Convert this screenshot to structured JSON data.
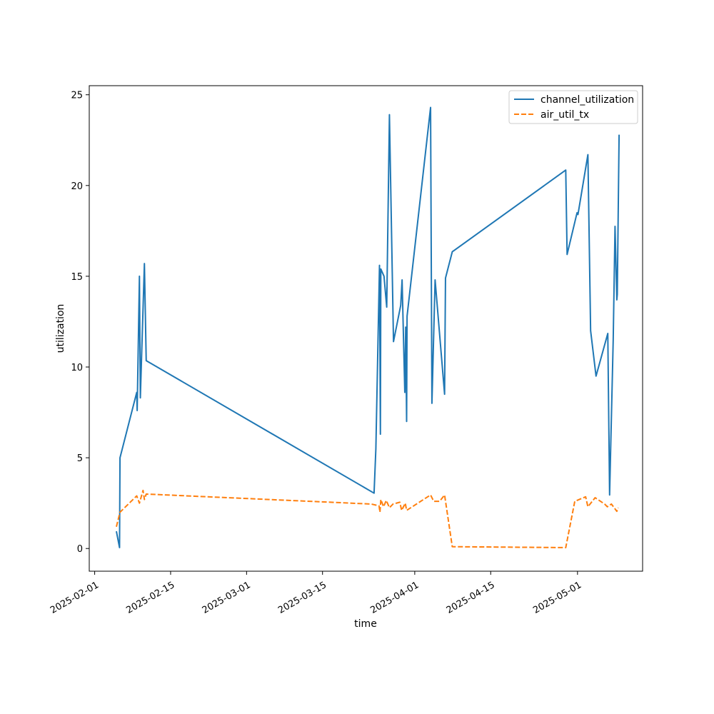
{
  "chart_data": {
    "type": "line",
    "title": "",
    "xlabel": "time",
    "ylabel": "utilization",
    "grid": false,
    "legend_position": "top-right",
    "xlim": [
      "2025-01-31",
      "2025-05-13"
    ],
    "ylim": [
      -1.25,
      25.5
    ],
    "x_ticks": [
      {
        "value": "2025-02-01",
        "label": "2025-02-01"
      },
      {
        "value": "2025-02-15",
        "label": "2025-02-15"
      },
      {
        "value": "2025-03-01",
        "label": "2025-03-01"
      },
      {
        "value": "2025-03-15",
        "label": "2025-03-15"
      },
      {
        "value": "2025-04-01",
        "label": "2025-04-01"
      },
      {
        "value": "2025-04-15",
        "label": "2025-04-15"
      },
      {
        "value": "2025-05-01",
        "label": "2025-05-01"
      }
    ],
    "y_ticks": [
      {
        "value": 0,
        "label": "0"
      },
      {
        "value": 5,
        "label": "5"
      },
      {
        "value": 10,
        "label": "10"
      },
      {
        "value": 15,
        "label": "15"
      },
      {
        "value": 20,
        "label": "20"
      },
      {
        "value": 25,
        "label": "25"
      }
    ],
    "series": [
      {
        "name": "channel_utilization",
        "color": "#1f77b4",
        "style": "solid",
        "points": [
          [
            "2025-02-05 00:00",
            0.95
          ],
          [
            "2025-02-05 14:00",
            0.05
          ],
          [
            "2025-02-05 16:00",
            5.0
          ],
          [
            "2025-02-08 18:00",
            8.6
          ],
          [
            "2025-02-08 20:00",
            7.6
          ],
          [
            "2025-02-09 06:00",
            15.0
          ],
          [
            "2025-02-09 10:00",
            8.3
          ],
          [
            "2025-02-10 04:00",
            15.7
          ],
          [
            "2025-02-10 12:00",
            10.35
          ],
          [
            "2025-03-24 12:00",
            3.05
          ],
          [
            "2025-03-24 20:00",
            5.5
          ],
          [
            "2025-03-25 12:00",
            15.6
          ],
          [
            "2025-03-25 16:00",
            6.3
          ],
          [
            "2025-03-25 18:00",
            15.4
          ],
          [
            "2025-03-26 08:00",
            15.0
          ],
          [
            "2025-03-26 20:00",
            13.3
          ],
          [
            "2025-03-27 08:00",
            23.9
          ],
          [
            "2025-03-28 02:00",
            11.4
          ],
          [
            "2025-03-29 10:00",
            13.4
          ],
          [
            "2025-03-29 16:00",
            14.8
          ],
          [
            "2025-03-30 04:00",
            8.6
          ],
          [
            "2025-03-30 08:00",
            12.2
          ],
          [
            "2025-03-30 12:00",
            7.0
          ],
          [
            "2025-03-30 14:00",
            12.8
          ],
          [
            "2025-04-03 22:00",
            24.3
          ],
          [
            "2025-04-04 04:00",
            8.0
          ],
          [
            "2025-04-04 18:00",
            14.8
          ],
          [
            "2025-04-06 12:00",
            8.5
          ],
          [
            "2025-04-06 16:00",
            14.9
          ],
          [
            "2025-04-07 22:00",
            16.35
          ],
          [
            "2025-04-28 20:00",
            20.85
          ],
          [
            "2025-04-29 02:00",
            16.2
          ],
          [
            "2025-04-30 22:00",
            18.5
          ],
          [
            "2025-05-01 02:00",
            18.4
          ],
          [
            "2025-05-02 22:00",
            21.7
          ],
          [
            "2025-05-03 10:00",
            12.0
          ],
          [
            "2025-05-04 10:00",
            9.5
          ],
          [
            "2025-05-06 14:00",
            11.85
          ],
          [
            "2025-05-06 22:00",
            2.95
          ],
          [
            "2025-05-07 14:00",
            11.5
          ],
          [
            "2025-05-07 22:00",
            17.75
          ],
          [
            "2025-05-08 06:00",
            13.7
          ],
          [
            "2025-05-08 08:00",
            14.0
          ],
          [
            "2025-05-08 16:00",
            22.8
          ]
        ]
      },
      {
        "name": "air_util_tx",
        "color": "#ff7f0e",
        "style": "dashed",
        "points": [
          [
            "2025-02-05 00:00",
            1.2
          ],
          [
            "2025-02-05 16:00",
            2.0
          ],
          [
            "2025-02-08 18:00",
            2.9
          ],
          [
            "2025-02-09 06:00",
            2.5
          ],
          [
            "2025-02-09 22:00",
            3.2
          ],
          [
            "2025-02-10 04:00",
            2.7
          ],
          [
            "2025-02-10 12:00",
            3.0
          ],
          [
            "2025-03-24 00:00",
            2.45
          ],
          [
            "2025-03-25 10:00",
            2.35
          ],
          [
            "2025-03-25 14:00",
            2.0
          ],
          [
            "2025-03-25 18:00",
            2.7
          ],
          [
            "2025-03-26 06:00",
            2.3
          ],
          [
            "2025-03-26 18:00",
            2.65
          ],
          [
            "2025-03-27 08:00",
            2.25
          ],
          [
            "2025-03-28 00:00",
            2.45
          ],
          [
            "2025-03-29 06:00",
            2.55
          ],
          [
            "2025-03-29 14:00",
            2.1
          ],
          [
            "2025-03-30 06:00",
            2.5
          ],
          [
            "2025-03-30 12:00",
            2.1
          ],
          [
            "2025-04-03 22:00",
            2.95
          ],
          [
            "2025-04-04 12:00",
            2.6
          ],
          [
            "2025-04-05 14:00",
            2.6
          ],
          [
            "2025-04-06 12:00",
            2.95
          ],
          [
            "2025-04-07 22:00",
            0.1
          ],
          [
            "2025-04-28 20:00",
            0.05
          ],
          [
            "2025-04-30 12:00",
            2.6
          ],
          [
            "2025-05-02 12:00",
            2.85
          ],
          [
            "2025-05-02 22:00",
            2.3
          ],
          [
            "2025-05-04 06:00",
            2.8
          ],
          [
            "2025-05-06 00:00",
            2.45
          ],
          [
            "2025-05-06 12:00",
            2.3
          ],
          [
            "2025-05-07 06:00",
            2.45
          ],
          [
            "2025-05-08 06:00",
            2.05
          ],
          [
            "2025-05-08 12:00",
            2.25
          ]
        ]
      }
    ]
  }
}
